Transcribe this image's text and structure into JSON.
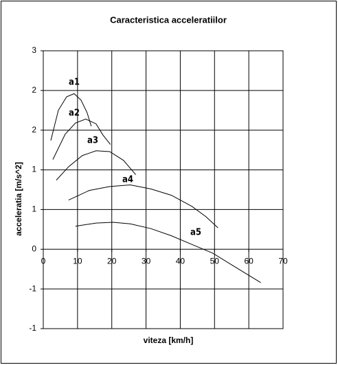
{
  "chart_data": {
    "type": "line",
    "title": "Caracteristica acceleratiilor",
    "x_label": "viteza [km/h]",
    "y_label": "acceleratia [m/s^2]",
    "xlim": [
      0,
      70
    ],
    "xticks": [
      0,
      10,
      20,
      30,
      40,
      50,
      60,
      70
    ],
    "ylim": [
      -1,
      2.5
    ],
    "yticks": [
      {
        "value": -1,
        "label": "-1"
      },
      {
        "value": -0.5,
        "label": "-1"
      },
      0,
      {
        "value": 0.5,
        "label": "1"
      },
      1,
      {
        "value": 1.5,
        "label": "2"
      },
      2,
      {
        "value": 2.5,
        "label": "3"
      }
    ],
    "grid": true,
    "series": [
      {
        "name": "a1",
        "color": "#000000",
        "x": [
          2.2,
          4.4,
          6.8,
          9,
          11,
          12.8,
          14
        ],
        "values": [
          1.37,
          1.75,
          1.92,
          1.96,
          1.88,
          1.72,
          1.55
        ]
      },
      {
        "name": "a2",
        "color": "#000000",
        "x": [
          2.8,
          6.4,
          9.4,
          12.4,
          15.4,
          17.4,
          19.6
        ],
        "values": [
          1.13,
          1.45,
          1.59,
          1.64,
          1.58,
          1.44,
          1.32
        ]
      },
      {
        "name": "a3",
        "color": "#000000",
        "x": [
          3.8,
          7.4,
          11.4,
          15.4,
          19.4,
          23.4,
          27
        ],
        "values": [
          0.87,
          1.04,
          1.18,
          1.24,
          1.23,
          1.12,
          0.94
        ]
      },
      {
        "name": "a4",
        "color": "#000000",
        "x": [
          7.4,
          13.4,
          19.4,
          25.4,
          31.4,
          37.4,
          43.4,
          47.5,
          51
        ],
        "values": [
          0.62,
          0.74,
          0.79,
          0.81,
          0.76,
          0.68,
          0.54,
          0.41,
          0.27
        ]
      },
      {
        "name": "a5",
        "color": "#000000",
        "x": [
          9.4,
          15.4,
          20.4,
          25.4,
          31.4,
          37.4,
          43.4,
          49.5,
          55.5,
          63.5
        ],
        "values": [
          0.29,
          0.33,
          0.34,
          0.32,
          0.26,
          0.17,
          0.06,
          -0.05,
          -0.21,
          -0.42
        ]
      }
    ]
  }
}
